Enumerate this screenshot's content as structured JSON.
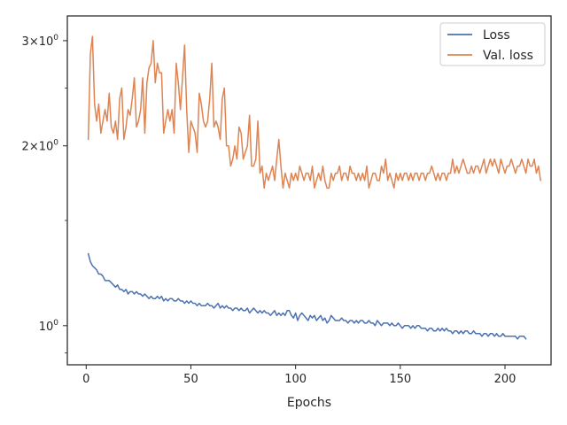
{
  "chart_data": {
    "type": "line",
    "title": "",
    "xlabel": "Epochs",
    "ylabel": "",
    "yscale": "log",
    "xlim": [
      -9,
      222
    ],
    "ylim": [
      0.86,
      3.3
    ],
    "grid": false,
    "legend_position": "top-right",
    "x_ticks": [
      0,
      50,
      100,
      150,
      200
    ],
    "x_tick_labels": [
      "0",
      "50",
      "100",
      "150",
      "200"
    ],
    "y_ticks": [
      1,
      2,
      3
    ],
    "y_tick_labels": [
      {
        "base": "1",
        "exp": "0"
      },
      {
        "base": "2",
        "exp": "0"
      },
      {
        "base": "3",
        "exp": "0"
      }
    ],
    "series": [
      {
        "name": "Loss",
        "color": "#4c72b0",
        "x_start": 1,
        "values": [
          1.32,
          1.28,
          1.26,
          1.25,
          1.24,
          1.22,
          1.22,
          1.21,
          1.19,
          1.19,
          1.19,
          1.18,
          1.17,
          1.16,
          1.17,
          1.15,
          1.15,
          1.14,
          1.15,
          1.13,
          1.14,
          1.14,
          1.13,
          1.14,
          1.13,
          1.13,
          1.12,
          1.13,
          1.12,
          1.11,
          1.12,
          1.11,
          1.11,
          1.12,
          1.11,
          1.12,
          1.1,
          1.11,
          1.1,
          1.11,
          1.11,
          1.1,
          1.1,
          1.11,
          1.1,
          1.1,
          1.09,
          1.1,
          1.09,
          1.1,
          1.09,
          1.09,
          1.08,
          1.09,
          1.08,
          1.08,
          1.08,
          1.09,
          1.08,
          1.08,
          1.07,
          1.08,
          1.09,
          1.07,
          1.08,
          1.07,
          1.08,
          1.07,
          1.07,
          1.06,
          1.07,
          1.07,
          1.06,
          1.07,
          1.06,
          1.06,
          1.07,
          1.05,
          1.06,
          1.07,
          1.06,
          1.05,
          1.06,
          1.05,
          1.06,
          1.05,
          1.05,
          1.04,
          1.05,
          1.06,
          1.04,
          1.05,
          1.04,
          1.05,
          1.04,
          1.06,
          1.06,
          1.04,
          1.03,
          1.05,
          1.02,
          1.04,
          1.05,
          1.04,
          1.03,
          1.02,
          1.04,
          1.03,
          1.04,
          1.02,
          1.03,
          1.04,
          1.02,
          1.03,
          1.01,
          1.02,
          1.04,
          1.03,
          1.02,
          1.02,
          1.02,
          1.03,
          1.02,
          1.02,
          1.01,
          1.02,
          1.02,
          1.01,
          1.02,
          1.01,
          1.02,
          1.02,
          1.01,
          1.01,
          1.02,
          1.01,
          1.01,
          1.0,
          1.02,
          1.01,
          1.0,
          1.01,
          1.01,
          1.01,
          1.0,
          1.01,
          1.0,
          1.0,
          1.01,
          1.0,
          0.99,
          1.0,
          1.0,
          1.0,
          0.99,
          1.0,
          0.99,
          1.0,
          1.0,
          0.99,
          0.99,
          0.99,
          0.98,
          0.99,
          0.99,
          0.98,
          0.98,
          0.99,
          0.98,
          0.99,
          0.98,
          0.99,
          0.98,
          0.98,
          0.97,
          0.98,
          0.98,
          0.97,
          0.98,
          0.97,
          0.98,
          0.98,
          0.97,
          0.97,
          0.98,
          0.97,
          0.97,
          0.97,
          0.96,
          0.97,
          0.97,
          0.96,
          0.97,
          0.97,
          0.96,
          0.97,
          0.96,
          0.96,
          0.97,
          0.96,
          0.96,
          0.96,
          0.96,
          0.96,
          0.96,
          0.95,
          0.96,
          0.96,
          0.96,
          0.95
        ]
      },
      {
        "name": "Val. loss",
        "color": "#dd8452",
        "x_start": 1,
        "values": [
          2.05,
          2.85,
          3.05,
          2.35,
          2.2,
          2.35,
          2.1,
          2.2,
          2.3,
          2.2,
          2.45,
          2.15,
          2.1,
          2.2,
          2.05,
          2.4,
          2.5,
          2.05,
          2.15,
          2.3,
          2.25,
          2.4,
          2.6,
          2.15,
          2.2,
          2.3,
          2.6,
          2.1,
          2.55,
          2.7,
          2.75,
          3.0,
          2.55,
          2.75,
          2.65,
          2.65,
          2.1,
          2.2,
          2.3,
          2.2,
          2.3,
          2.1,
          2.75,
          2.55,
          2.3,
          2.6,
          2.95,
          2.3,
          1.95,
          2.2,
          2.15,
          2.1,
          1.95,
          2.45,
          2.35,
          2.2,
          2.15,
          2.2,
          2.4,
          2.75,
          2.15,
          2.2,
          2.15,
          2.05,
          2.4,
          2.5,
          2.0,
          2.0,
          1.85,
          1.9,
          2.0,
          1.9,
          2.15,
          2.1,
          1.9,
          1.95,
          2.0,
          2.25,
          1.85,
          1.85,
          1.9,
          2.2,
          1.8,
          1.85,
          1.7,
          1.8,
          1.75,
          1.8,
          1.85,
          1.75,
          1.9,
          2.05,
          1.85,
          1.7,
          1.8,
          1.75,
          1.7,
          1.8,
          1.75,
          1.8,
          1.75,
          1.85,
          1.8,
          1.75,
          1.8,
          1.8,
          1.75,
          1.85,
          1.7,
          1.75,
          1.8,
          1.75,
          1.85,
          1.75,
          1.7,
          1.7,
          1.8,
          1.75,
          1.8,
          1.8,
          1.85,
          1.75,
          1.8,
          1.8,
          1.75,
          1.85,
          1.8,
          1.8,
          1.75,
          1.8,
          1.75,
          1.8,
          1.75,
          1.85,
          1.7,
          1.75,
          1.8,
          1.8,
          1.75,
          1.75,
          1.85,
          1.8,
          1.9,
          1.75,
          1.8,
          1.75,
          1.7,
          1.8,
          1.75,
          1.8,
          1.75,
          1.8,
          1.8,
          1.75,
          1.8,
          1.75,
          1.8,
          1.8,
          1.75,
          1.8,
          1.8,
          1.75,
          1.8,
          1.8,
          1.85,
          1.8,
          1.75,
          1.8,
          1.75,
          1.8,
          1.8,
          1.75,
          1.8,
          1.8,
          1.9,
          1.8,
          1.85,
          1.8,
          1.85,
          1.9,
          1.85,
          1.8,
          1.8,
          1.85,
          1.8,
          1.85,
          1.85,
          1.8,
          1.85,
          1.9,
          1.8,
          1.85,
          1.9,
          1.85,
          1.9,
          1.85,
          1.8,
          1.9,
          1.85,
          1.8,
          1.85,
          1.85,
          1.9,
          1.85,
          1.8,
          1.85,
          1.85,
          1.9,
          1.85,
          1.8,
          1.9,
          1.85,
          1.85,
          1.9,
          1.8,
          1.85,
          1.75
        ]
      }
    ]
  }
}
